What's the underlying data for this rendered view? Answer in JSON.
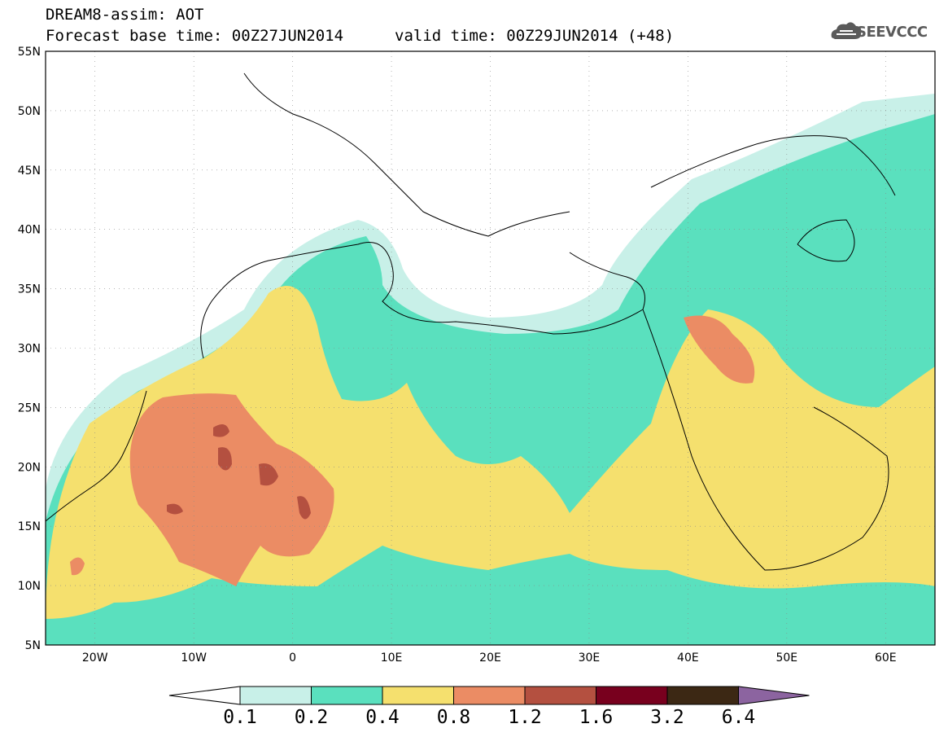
{
  "header": {
    "line1": "DREAM8-assim: AOT",
    "line2": "Forecast base time: 00Z27JUN2014",
    "valid": "valid time: 00Z29JUN2014 (+48)"
  },
  "logo": {
    "text": "SEEVCCC",
    "icon": "cloud-icon",
    "color": "#5a5a5a"
  },
  "map": {
    "lon_range": [
      -25,
      65
    ],
    "lat_range": [
      5,
      55
    ],
    "lat_ticks": [
      "5N",
      "10N",
      "15N",
      "20N",
      "25N",
      "30N",
      "35N",
      "40N",
      "45N",
      "50N",
      "55N"
    ],
    "lon_ticks": [
      "20W",
      "10W",
      "0",
      "10E",
      "20E",
      "30E",
      "40E",
      "50E",
      "60E"
    ],
    "lon_tick_values": [
      -20,
      -10,
      0,
      10,
      20,
      30,
      40,
      50,
      60
    ],
    "lat_tick_values": [
      5,
      10,
      15,
      20,
      25,
      30,
      35,
      40,
      45,
      50,
      55
    ]
  },
  "colorbar": {
    "labels": [
      "0.1",
      "0.2",
      "0.4",
      "0.8",
      "1.2",
      "1.6",
      "3.2",
      "6.4"
    ],
    "colors": [
      "#ffffff",
      "#c8f0e8",
      "#5ae0be",
      "#f5e06e",
      "#eb8c64",
      "#b45040",
      "#78001e",
      "#3c2814",
      "#8c64a0"
    ]
  },
  "palette": {
    "aot_0_1": "#c8f0e8",
    "aot_0_2": "#5ae0be",
    "aot_0_4": "#f5e06e",
    "aot_0_8": "#eb8c64",
    "aot_1_2": "#b45040"
  }
}
